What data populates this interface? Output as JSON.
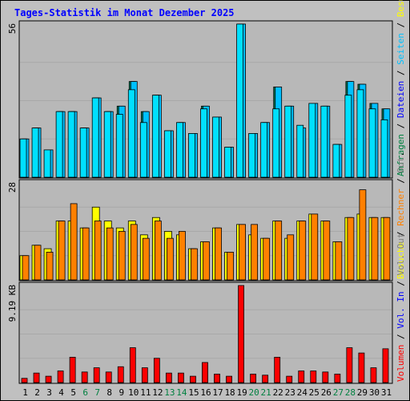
{
  "title": "Tages-Statistik im Monat Dezember 2025",
  "colors": {
    "anfragen": "#00805c",
    "dateien": "#00c0ff",
    "seiten": "#00e0ff",
    "besuche": "#ffff00",
    "rechner": "#ff8000",
    "volumen": "#ff0000",
    "vol_in": "#0000ff",
    "vol_out": "#808080",
    "weekend": "#008040",
    "weekday": "#000000"
  },
  "chart_data": [
    {
      "type": "bar",
      "panel": "top",
      "axis_max_label": "56",
      "ylim": [
        0,
        56
      ],
      "categories": [
        "1",
        "2",
        "3",
        "4",
        "5",
        "6",
        "7",
        "8",
        "9",
        "10",
        "11",
        "12",
        "13",
        "14",
        "15",
        "16",
        "17",
        "18",
        "19",
        "20",
        "21",
        "22",
        "23",
        "24",
        "25",
        "26",
        "27",
        "28",
        "29",
        "30",
        "31"
      ],
      "weekend_days": [
        "6",
        "7",
        "13",
        "14",
        "20",
        "21",
        "27",
        "28"
      ],
      "right_label_parts": [
        {
          "text": "Anfragen",
          "color": "#008040"
        },
        {
          "text": " / ",
          "color": "#000000"
        },
        {
          "text": "Dateien",
          "color": "#0000ff"
        },
        {
          "text": " / ",
          "color": "#000000"
        },
        {
          "text": "Seiten",
          "color": "#00c0ff"
        },
        {
          "text": " / ",
          "color": "#000000"
        },
        {
          "text": "Besuche",
          "color": "#ffff00"
        }
      ],
      "series": [
        {
          "name": "Anfragen",
          "values": [
            14,
            18,
            10,
            24,
            24,
            18,
            29,
            24,
            26,
            35,
            24,
            30,
            17,
            20,
            16,
            26,
            22,
            11,
            56,
            16,
            20,
            33,
            26,
            18,
            27,
            26,
            12,
            35,
            34,
            27,
            25
          ]
        },
        {
          "name": "Dateien",
          "values": [
            14,
            18,
            10,
            24,
            24,
            18,
            29,
            24,
            26,
            35,
            24,
            30,
            17,
            20,
            16,
            26,
            22,
            11,
            56,
            16,
            20,
            33,
            26,
            18,
            27,
            26,
            12,
            35,
            34,
            27,
            25
          ]
        },
        {
          "name": "Seiten",
          "values": [
            14,
            18,
            10,
            24,
            24,
            18,
            29,
            24,
            23,
            32,
            20,
            30,
            17,
            20,
            16,
            25,
            22,
            11,
            56,
            16,
            20,
            25,
            26,
            19,
            27,
            26,
            12,
            30,
            32,
            25,
            21
          ]
        }
      ]
    },
    {
      "type": "bar",
      "panel": "middle",
      "axis_max_label": "28",
      "ylim": [
        0,
        28
      ],
      "categories": [
        "1",
        "2",
        "3",
        "4",
        "5",
        "6",
        "7",
        "8",
        "9",
        "10",
        "11",
        "12",
        "13",
        "14",
        "15",
        "16",
        "17",
        "18",
        "19",
        "20",
        "21",
        "22",
        "23",
        "24",
        "25",
        "26",
        "27",
        "28",
        "29",
        "30",
        "31"
      ],
      "right_label_parts": [
        {
          "text": "Besuche",
          "color": "#ffff00"
        },
        {
          "text": " / ",
          "color": "#000000"
        },
        {
          "text": "Rechner",
          "color": "#ff8000"
        },
        {
          "text": " / ",
          "color": "#000000"
        },
        {
          "text": "Out",
          "color": "#808080"
        },
        {
          "text": ". ",
          "color": "#000000"
        }
      ],
      "series": [
        {
          "name": "Besuche",
          "values": [
            7,
            10,
            9,
            17,
            17,
            15,
            21,
            17,
            15,
            17,
            13,
            18,
            14,
            13,
            9,
            11,
            15,
            8,
            16,
            13,
            12,
            17,
            12,
            17,
            19,
            17,
            11,
            18,
            19,
            18,
            18
          ]
        },
        {
          "name": "Rechner",
          "values": [
            7,
            10,
            8,
            17,
            22,
            15,
            17,
            15,
            14,
            16,
            12,
            17,
            12,
            14,
            9,
            11,
            15,
            8,
            16,
            16,
            12,
            17,
            13,
            17,
            19,
            17,
            11,
            18,
            26,
            18,
            18
          ]
        }
      ]
    },
    {
      "type": "bar",
      "panel": "bottom",
      "axis_max_label": "9.19 KB",
      "ylim": [
        0,
        9.19
      ],
      "unit": "KB",
      "categories": [
        "1",
        "2",
        "3",
        "4",
        "5",
        "6",
        "7",
        "8",
        "9",
        "10",
        "11",
        "12",
        "13",
        "14",
        "15",
        "16",
        "17",
        "18",
        "19",
        "20",
        "21",
        "22",
        "23",
        "24",
        "25",
        "26",
        "27",
        "28",
        "29",
        "30",
        "31"
      ],
      "right_label_parts": [
        {
          "text": "Volumen",
          "color": "#ff0000"
        },
        {
          "text": " / ",
          "color": "#000000"
        },
        {
          "text": "Vol. In",
          "color": "#0000ff"
        },
        {
          "text": " / ",
          "color": "#000000"
        },
        {
          "text": "Vol. Out",
          "color": "#808080"
        }
      ],
      "series": [
        {
          "name": "Volumen",
          "values": [
            0.4,
            0.9,
            0.6,
            1.1,
            2.4,
            1.0,
            1.4,
            1.0,
            1.5,
            3.3,
            1.4,
            2.3,
            0.9,
            0.9,
            0.6,
            1.9,
            0.8,
            0.6,
            9.19,
            0.8,
            0.7,
            2.4,
            0.6,
            1.1,
            1.1,
            1.0,
            0.8,
            3.3,
            2.8,
            1.4,
            3.2
          ]
        }
      ]
    }
  ]
}
